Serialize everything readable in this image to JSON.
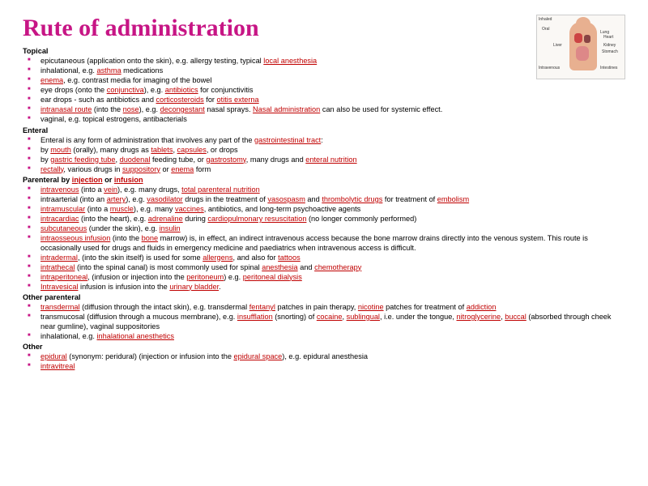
{
  "title": "Rute of administration",
  "diagram": {
    "labels": [
      "Inhaled",
      "Oral",
      "Lung",
      "Liver",
      "Heart",
      "Kidney",
      "Stomach",
      "Intravenous",
      "Intestines"
    ]
  },
  "sections": [
    {
      "heading": "Topical",
      "heading_links": [],
      "items": [
        [
          {
            "t": "epicutaneous (application onto the skin), e.g. allergy testing, typical "
          },
          {
            "t": "local anesthesia",
            "l": 1
          }
        ],
        [
          {
            "t": "inhalational,  e.g. "
          },
          {
            "t": "asthma",
            "l": 1
          },
          {
            "t": " medications"
          }
        ],
        [
          {
            "t": "enema",
            "l": 1
          },
          {
            "t": ", e.g. contrast media for imaging  of the bowel"
          }
        ],
        [
          {
            "t": "eye drops (onto the "
          },
          {
            "t": "conjunctiva",
            "l": 1
          },
          {
            "t": "), e.g. "
          },
          {
            "t": "antibiotics",
            "l": 1
          },
          {
            "t": " for conjunctivitis"
          }
        ],
        [
          {
            "t": "ear drops - such as antibiotics and "
          },
          {
            "t": "corticosteroids",
            "l": 1
          },
          {
            "t": " for "
          },
          {
            "t": "otitis externa",
            "l": 1
          }
        ],
        [
          {
            "t": "intranasal route",
            "l": 1
          },
          {
            "t": " (into the "
          },
          {
            "t": "nose",
            "l": 1
          },
          {
            "t": "), e.g. "
          },
          {
            "t": "decongestant",
            "l": 1
          },
          {
            "t": " nasal sprays.  "
          },
          {
            "t": "Nasal administration",
            "l": 1
          },
          {
            "t": "  can also  be used for systemic effect."
          }
        ],
        [
          {
            "t": "vaginal,  e.g. topical estrogens, antibacterials"
          }
        ]
      ]
    },
    {
      "heading": "Enteral",
      "heading_links": [],
      "items": [
        [
          {
            "t": "Enteral is any form of administration  that involves any part of the "
          },
          {
            "t": "gastrointestinal tract",
            "l": 1
          },
          {
            "t": ":"
          }
        ],
        [
          {
            "t": "by "
          },
          {
            "t": "mouth",
            "l": 1
          },
          {
            "t": " (orally), many drugs as "
          },
          {
            "t": "tablets",
            "l": 1
          },
          {
            "t": ", "
          },
          {
            "t": "capsules",
            "l": 1
          },
          {
            "t": ", or drops"
          }
        ],
        [
          {
            "t": "by "
          },
          {
            "t": "gastric feeding tube",
            "l": 1
          },
          {
            "t": ", "
          },
          {
            "t": "duodenal",
            "l": 1
          },
          {
            "t": " feeding tube, or "
          },
          {
            "t": "gastrostomy",
            "l": 1
          },
          {
            "t": ", many drugs and "
          },
          {
            "t": "enteral nutrition",
            "l": 1
          }
        ],
        [
          {
            "t": "rectally",
            "l": 1
          },
          {
            "t": ", various drugs in "
          },
          {
            "t": "suppository",
            "l": 1
          },
          {
            "t": " or "
          },
          {
            "t": "enema",
            "l": 1
          },
          {
            "t": " form"
          }
        ]
      ]
    },
    {
      "heading": "Parenteral by injection or infusion",
      "heading_segments": [
        {
          "t": "Parenteral by "
        },
        {
          "t": "injection",
          "l": 1
        },
        {
          "t": " or "
        },
        {
          "t": "infusion",
          "l": 1
        }
      ],
      "items": [
        [
          {
            "t": "intravenous",
            "l": 1
          },
          {
            "t": " (into a "
          },
          {
            "t": "vein",
            "l": 1
          },
          {
            "t": "), e.g. many drugs, "
          },
          {
            "t": "total parenteral nutrition",
            "l": 1
          }
        ],
        [
          {
            "t": "intraarterial (into an "
          },
          {
            "t": "artery",
            "l": 1
          },
          {
            "t": "), e.g. "
          },
          {
            "t": "vasodilator",
            "l": 1
          },
          {
            "t": " drugs in the treatment of "
          },
          {
            "t": "vasospasm",
            "l": 1
          },
          {
            "t": " and "
          },
          {
            "t": "thrombolytic drugs",
            "l": 1
          },
          {
            "t": " for treatment of "
          },
          {
            "t": "embolism",
            "l": 1
          }
        ],
        [
          {
            "t": "intramuscular",
            "l": 1
          },
          {
            "t": " (into a "
          },
          {
            "t": "muscle",
            "l": 1
          },
          {
            "t": "), e.g. many "
          },
          {
            "t": "vaccines",
            "l": 1
          },
          {
            "t": ", antibiotics, and long-term psychoactive agents"
          }
        ],
        [
          {
            "t": "intracardiac",
            "l": 1
          },
          {
            "t": " (into the heart), e.g. "
          },
          {
            "t": "adrenaline",
            "l": 1
          },
          {
            "t": " during "
          },
          {
            "t": "cardiopulmonary resuscitation",
            "l": 1
          },
          {
            "t": " (no longer commonly performed)"
          }
        ],
        [
          {
            "t": "subcutaneous",
            "l": 1
          },
          {
            "t": " (under the skin), e.g. "
          },
          {
            "t": "insulin",
            "l": 1
          }
        ],
        [
          {
            "t": "intraosseous infusion",
            "l": 1
          },
          {
            "t": " (into the "
          },
          {
            "t": "bone",
            "l": 1
          },
          {
            "t": " marrow) is, in effect, an indirect intravenous access because the bone marrow drains directly into the venous system. This route is occasionally used for drugs and fluids in emergency medicine and paediatrics when intravenous access is difficult."
          }
        ],
        [
          {
            "t": "intradermal",
            "l": 1
          },
          {
            "t": ", (into the skin itself) is used for  some "
          },
          {
            "t": "allergens",
            "l": 1
          },
          {
            "t": ", and also for "
          },
          {
            "t": "tattoos",
            "l": 1
          }
        ],
        [
          {
            "t": "intrathecal",
            "l": 1
          },
          {
            "t": " (into the spinal canal) is most commonly used for spinal "
          },
          {
            "t": "anesthesia",
            "l": 1
          },
          {
            "t": " and "
          },
          {
            "t": "chemotherapy",
            "l": 1
          }
        ],
        [
          {
            "t": "intraperitoneal",
            "l": 1
          },
          {
            "t": ", (infusion or injection into the "
          },
          {
            "t": "peritoneum",
            "l": 1
          },
          {
            "t": ") e.g. "
          },
          {
            "t": "peritoneal dialysis",
            "l": 1
          }
        ],
        [
          {
            "t": "Intravesical",
            "l": 1
          },
          {
            "t": " infusion is infusion into the "
          },
          {
            "t": "urinary bladder",
            "l": 1
          },
          {
            "t": "."
          }
        ]
      ]
    },
    {
      "heading": "Other parenteral",
      "heading_links": [],
      "items": [
        [
          {
            "t": "transdermal",
            "l": 1
          },
          {
            "t": " (diffusion through the intact skin), e.g. transdermal "
          },
          {
            "t": "fentanyl",
            "l": 1
          },
          {
            "t": " patches in pain therapy, "
          },
          {
            "t": "nicotine",
            "l": 1
          },
          {
            "t": " patches for treatment of "
          },
          {
            "t": "addiction",
            "l": 1
          }
        ],
        [
          {
            "t": "transmucosal (diffusion through a mucous membrane), e.g. "
          },
          {
            "t": "insufflation",
            "l": 1
          },
          {
            "t": " (snorting) of "
          },
          {
            "t": "cocaine",
            "l": 1
          },
          {
            "t": ", "
          },
          {
            "t": "sublingual",
            "l": 1
          },
          {
            "t": ", i.e. under the tongue, "
          },
          {
            "t": "nitroglycerine",
            "l": 1
          },
          {
            "t": ", "
          },
          {
            "t": "buccal",
            "l": 1
          },
          {
            "t": " (absorbed through cheek near gumline), vaginal suppositories"
          }
        ],
        [
          {
            "t": "inhalational,  e.g. "
          },
          {
            "t": "inhalational anesthetics",
            "l": 1
          }
        ]
      ]
    },
    {
      "heading": "Other",
      "heading_links": [],
      "items": [
        [
          {
            "t": "epidural",
            "l": 1
          },
          {
            "t": " (synonym: peridural) (injection or infusion into the "
          },
          {
            "t": "epidural space",
            "l": 1
          },
          {
            "t": "), e.g. epidural anesthesia"
          }
        ],
        [
          {
            "t": "intravitreal",
            "l": 1
          }
        ]
      ]
    }
  ]
}
